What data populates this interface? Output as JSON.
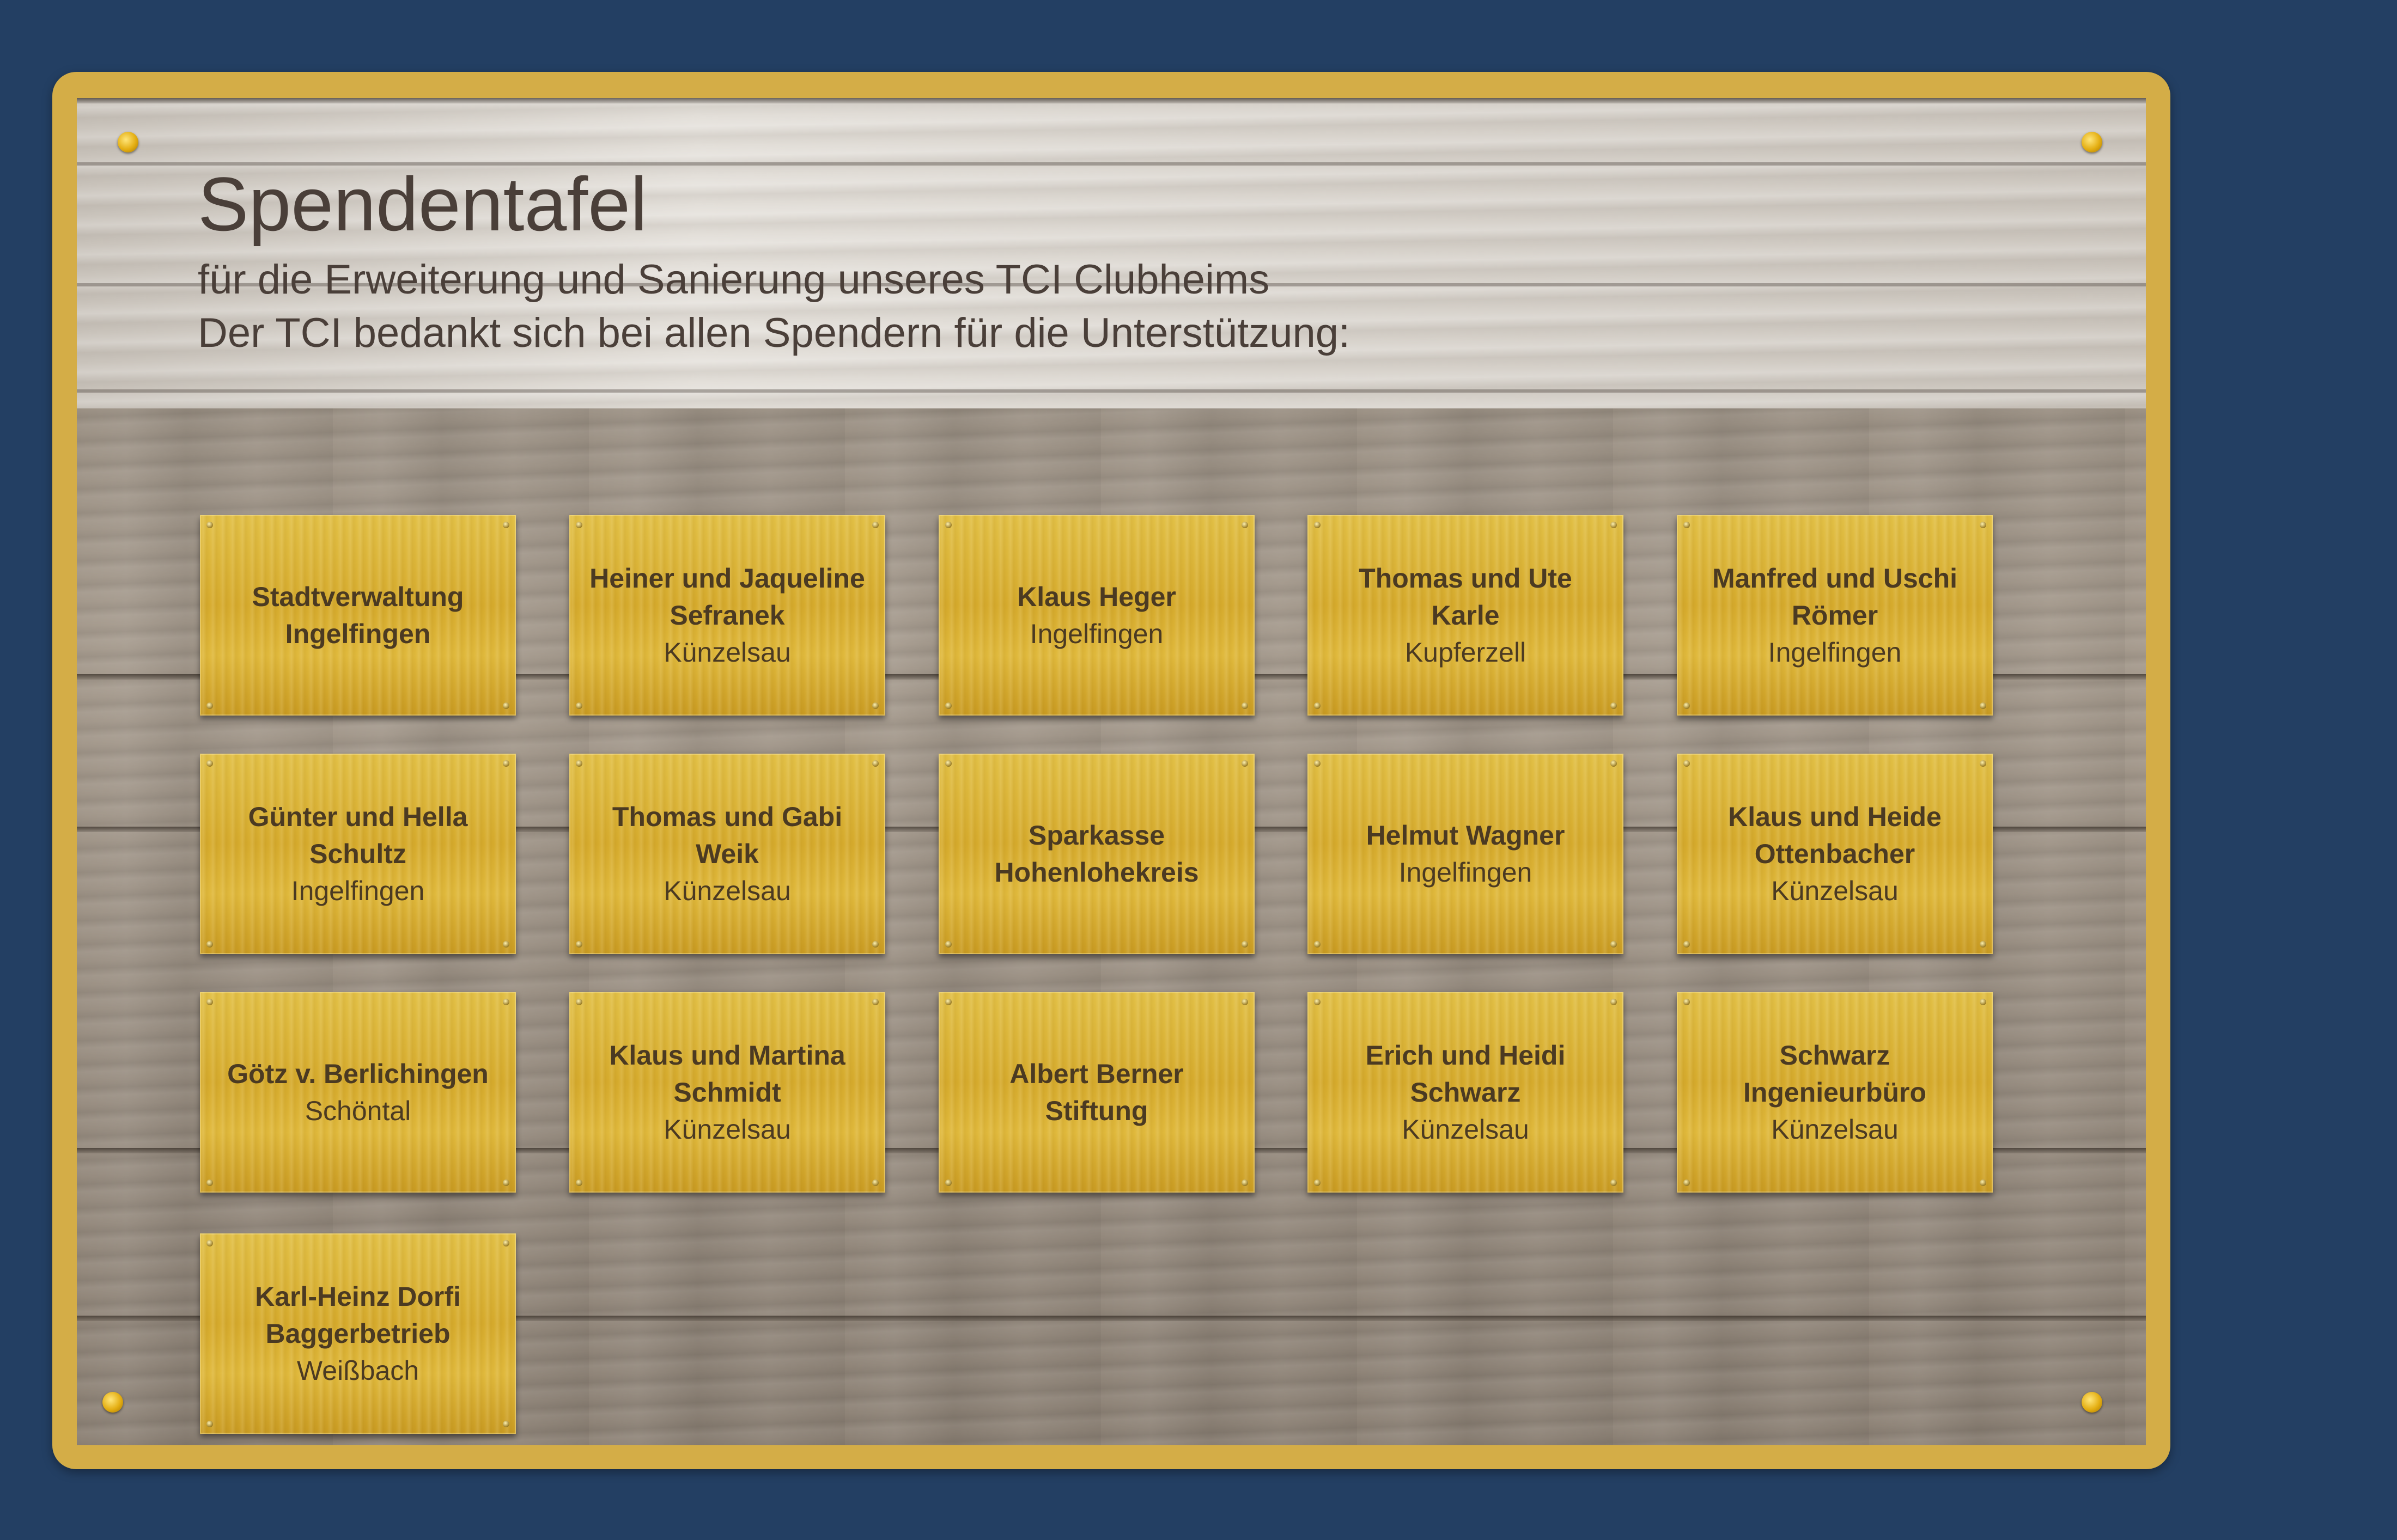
{
  "header": {
    "title": "Spendentafel",
    "subtitle_1": "für die Erweiterung und Sanierung unseres TCI Clubheims",
    "subtitle_2": "Der TCI bedankt sich bei allen Spendern für die Unterstützung:"
  },
  "colors": {
    "background": "#233f63",
    "frame": "#d4ad47",
    "plaque_gold": "#d6ab2d",
    "text": "#4a3f39"
  },
  "plaques": [
    {
      "name_lines": [
        "Stadtverwaltung",
        "Ingelfingen"
      ],
      "place": ""
    },
    {
      "name_lines": [
        "Heiner und Jaqueline",
        "Sefranek"
      ],
      "place": "Künzelsau"
    },
    {
      "name_lines": [
        "Klaus Heger"
      ],
      "place": "Ingelfingen"
    },
    {
      "name_lines": [
        "Thomas und Ute",
        "Karle"
      ],
      "place": "Kupferzell"
    },
    {
      "name_lines": [
        "Manfred und Uschi",
        "Römer"
      ],
      "place": "Ingelfingen"
    },
    {
      "name_lines": [
        "Günter und Hella",
        "Schultz"
      ],
      "place": "Ingelfingen"
    },
    {
      "name_lines": [
        "Thomas und Gabi",
        "Weik"
      ],
      "place": "Künzelsau"
    },
    {
      "name_lines": [
        "Sparkasse",
        "Hohenlohekreis"
      ],
      "place": ""
    },
    {
      "name_lines": [
        "Helmut Wagner"
      ],
      "place": "Ingelfingen"
    },
    {
      "name_lines": [
        "Klaus und Heide",
        "Ottenbacher"
      ],
      "place": "Künzelsau"
    },
    {
      "name_lines": [
        "Götz v. Berlichingen"
      ],
      "place": "Schöntal"
    },
    {
      "name_lines": [
        "Klaus und Martina",
        "Schmidt"
      ],
      "place": "Künzelsau"
    },
    {
      "name_lines": [
        "Albert Berner",
        "Stiftung"
      ],
      "place": ""
    },
    {
      "name_lines": [
        "Erich und Heidi",
        "Schwarz"
      ],
      "place": "Künzelsau"
    },
    {
      "name_lines": [
        "Schwarz",
        "Ingenieurbüro"
      ],
      "place": "Künzelsau"
    },
    {
      "name_lines": [
        "Karl-Heinz Dorfi",
        "Baggerbetrieb"
      ],
      "place": "Weißbach"
    }
  ]
}
